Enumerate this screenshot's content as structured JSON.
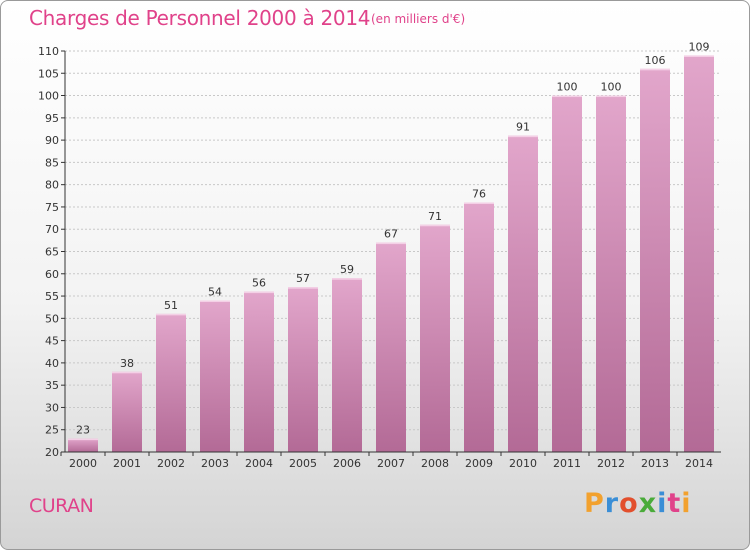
{
  "header": {
    "title": "Charges de Personnel 2000 à 2014",
    "subtitle": "(en milliers d'€)"
  },
  "footer": {
    "town": "CURAN",
    "logo_text": "Proxiti",
    "logo_colors": [
      "#f2a12e",
      "#3a8ed6",
      "#e24f2d",
      "#4aab3a",
      "#3a8ed6",
      "#e0428a",
      "#f2a12e"
    ]
  },
  "colors": {
    "bar_light": "#e2a6cb",
    "bar_dark": "#b36a96",
    "title": "#e0428a"
  },
  "chart_data": {
    "type": "bar",
    "title": "Charges de Personnel 2000 à 2014",
    "subtitle": "(en milliers d'€)",
    "categories": [
      "2000",
      "2001",
      "2002",
      "2003",
      "2004",
      "2005",
      "2006",
      "2007",
      "2008",
      "2009",
      "2010",
      "2011",
      "2012",
      "2013",
      "2014"
    ],
    "values": [
      23,
      38,
      51,
      54,
      56,
      57,
      59,
      67,
      71,
      76,
      91,
      100,
      100,
      106,
      109
    ],
    "ylim": [
      20,
      110
    ],
    "yticks": [
      20,
      25,
      30,
      35,
      40,
      45,
      50,
      55,
      60,
      65,
      70,
      75,
      80,
      85,
      90,
      95,
      100,
      105,
      110
    ],
    "grid": true,
    "xlabel": "",
    "ylabel": ""
  }
}
